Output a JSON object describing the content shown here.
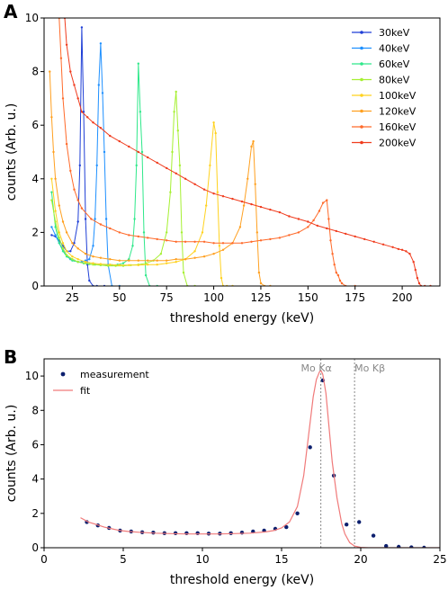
{
  "panels": [
    {
      "label": "A"
    },
    {
      "label": "B"
    }
  ],
  "chart_data": [
    {
      "type": "line",
      "panel": "A",
      "xlabel": "threshold energy (keV)",
      "ylabel": "counts (Arb. u.)",
      "xlim": [
        10,
        220
      ],
      "ylim": [
        0,
        10
      ],
      "xticks": [
        "25",
        "50",
        "75",
        "100",
        "125",
        "150",
        "175",
        "200"
      ],
      "yticks": [
        "0",
        "2",
        "4",
        "6",
        "8",
        "10"
      ],
      "legend_position": "top-right",
      "series": [
        {
          "name": "30keV",
          "color": "#1f3fd6",
          "x": [
            14,
            16,
            18,
            20,
            22,
            24,
            26,
            28,
            29,
            30,
            31,
            32,
            33,
            34,
            36,
            38,
            42
          ],
          "y": [
            1.9,
            1.85,
            1.7,
            1.5,
            1.3,
            1.3,
            1.6,
            2.4,
            4.5,
            9.65,
            6.5,
            2.5,
            0.8,
            0.2,
            0.0,
            0.0,
            0.0
          ]
        },
        {
          "name": "40keV",
          "color": "#1e90ff",
          "x": [
            14,
            16,
            18,
            20,
            22,
            24,
            26,
            28,
            30,
            32,
            34,
            36,
            37,
            38,
            39,
            40,
            41,
            42,
            43,
            44,
            46,
            50
          ],
          "y": [
            2.2,
            1.9,
            1.6,
            1.35,
            1.15,
            1.0,
            0.95,
            0.9,
            0.9,
            0.95,
            1.0,
            1.5,
            2.5,
            4.5,
            7.5,
            9.05,
            7.2,
            5.0,
            2.5,
            0.8,
            0.0,
            0.0
          ]
        },
        {
          "name": "60keV",
          "color": "#2ee88a",
          "x": [
            14,
            16,
            18,
            20,
            22,
            25,
            28,
            31,
            34,
            37,
            40,
            43,
            46,
            49,
            52,
            55,
            57,
            58,
            59,
            60,
            61,
            62,
            63,
            64,
            66,
            70
          ],
          "y": [
            3.5,
            2.2,
            1.6,
            1.3,
            1.1,
            0.95,
            0.9,
            0.85,
            0.82,
            0.8,
            0.78,
            0.78,
            0.78,
            0.8,
            0.85,
            1.0,
            1.5,
            2.5,
            4.5,
            8.3,
            6.5,
            5.0,
            2.0,
            0.4,
            0.0,
            0.0
          ]
        },
        {
          "name": "80keV",
          "color": "#a6f032",
          "x": [
            14,
            16,
            18,
            20,
            22,
            25,
            28,
            32,
            36,
            40,
            44,
            48,
            52,
            56,
            60,
            64,
            68,
            72,
            75,
            77,
            78,
            79,
            80,
            81,
            82,
            83,
            84,
            86,
            90
          ],
          "y": [
            3.2,
            2.4,
            1.8,
            1.4,
            1.15,
            1.0,
            0.9,
            0.85,
            0.8,
            0.78,
            0.75,
            0.75,
            0.75,
            0.78,
            0.8,
            0.85,
            0.95,
            1.2,
            2.0,
            3.5,
            5.0,
            6.5,
            7.25,
            5.8,
            4.5,
            2.0,
            0.5,
            0.0,
            0.0
          ]
        },
        {
          "name": "100keV",
          "color": "#ffd21f",
          "x": [
            14,
            16,
            18,
            20,
            22,
            25,
            28,
            32,
            36,
            40,
            45,
            50,
            55,
            60,
            65,
            70,
            75,
            80,
            85,
            90,
            94,
            96,
            98,
            100,
            101,
            102,
            103,
            104,
            105,
            107,
            110
          ],
          "y": [
            4.0,
            2.8,
            2.0,
            1.6,
            1.3,
            1.1,
            1.0,
            0.9,
            0.85,
            0.82,
            0.8,
            0.78,
            0.78,
            0.78,
            0.8,
            0.8,
            0.85,
            0.9,
            1.0,
            1.3,
            2.0,
            3.0,
            4.5,
            6.1,
            5.7,
            3.5,
            1.5,
            0.3,
            0.0,
            0.0,
            0.0
          ]
        },
        {
          "name": "120keV",
          "color": "#ffa020",
          "x": [
            13,
            14,
            15,
            16,
            18,
            20,
            22,
            25,
            28,
            32,
            36,
            40,
            45,
            50,
            55,
            60,
            65,
            70,
            75,
            80,
            85,
            90,
            95,
            100,
            105,
            110,
            114,
            116,
            118,
            120,
            121,
            122,
            123,
            124,
            125,
            127,
            130
          ],
          "y": [
            8.0,
            6.3,
            5.0,
            4.0,
            3.0,
            2.4,
            2.0,
            1.6,
            1.4,
            1.2,
            1.1,
            1.05,
            1.0,
            0.95,
            0.95,
            0.95,
            0.95,
            0.95,
            0.95,
            1.0,
            1.0,
            1.05,
            1.1,
            1.2,
            1.35,
            1.6,
            2.2,
            3.0,
            4.0,
            5.2,
            5.4,
            3.8,
            2.0,
            0.5,
            0.1,
            0.0,
            0.0
          ]
        },
        {
          "name": "160keV",
          "color": "#ff6a2a",
          "x": [
            18,
            19,
            20,
            22,
            24,
            26,
            28,
            30,
            35,
            40,
            45,
            50,
            55,
            60,
            65,
            70,
            75,
            80,
            85,
            90,
            95,
            100,
            105,
            110,
            115,
            120,
            125,
            130,
            135,
            140,
            145,
            150,
            153,
            156,
            158,
            160,
            161,
            162,
            163,
            164,
            165,
            166,
            167,
            168,
            170,
            175
          ],
          "y": [
            10.0,
            8.5,
            7.0,
            5.3,
            4.3,
            3.6,
            3.2,
            2.9,
            2.5,
            2.3,
            2.15,
            2.0,
            1.9,
            1.85,
            1.8,
            1.75,
            1.7,
            1.65,
            1.65,
            1.65,
            1.65,
            1.6,
            1.6,
            1.6,
            1.6,
            1.65,
            1.7,
            1.75,
            1.8,
            1.9,
            2.0,
            2.2,
            2.45,
            2.8,
            3.1,
            3.2,
            2.5,
            1.7,
            1.2,
            0.8,
            0.5,
            0.4,
            0.2,
            0.1,
            0.0,
            0.0
          ]
        },
        {
          "name": "200keV",
          "color": "#f03c1e",
          "x": [
            21,
            22,
            24,
            26,
            28,
            30,
            33,
            36,
            40,
            45,
            50,
            55,
            60,
            65,
            70,
            75,
            80,
            85,
            90,
            95,
            100,
            105,
            110,
            115,
            120,
            125,
            130,
            135,
            140,
            145,
            150,
            155,
            160,
            165,
            170,
            175,
            180,
            185,
            190,
            195,
            198,
            200,
            202,
            204,
            206,
            207,
            208,
            209,
            210,
            212,
            215
          ],
          "y": [
            10.0,
            9.0,
            8.0,
            7.5,
            7.0,
            6.5,
            6.3,
            6.1,
            5.9,
            5.6,
            5.4,
            5.2,
            5.0,
            4.8,
            4.6,
            4.4,
            4.2,
            4.0,
            3.8,
            3.6,
            3.45,
            3.35,
            3.25,
            3.15,
            3.05,
            2.95,
            2.85,
            2.75,
            2.6,
            2.5,
            2.4,
            2.25,
            2.15,
            2.05,
            1.95,
            1.85,
            1.75,
            1.65,
            1.55,
            1.45,
            1.38,
            1.35,
            1.3,
            1.2,
            0.9,
            0.6,
            0.3,
            0.1,
            0.0,
            0.0,
            0.0
          ]
        }
      ]
    },
    {
      "type": "scatter",
      "panel": "B",
      "xlabel": "threshold energy (keV)",
      "ylabel": "counts (Arb. u.)",
      "xlim": [
        0,
        25
      ],
      "ylim": [
        0,
        11
      ],
      "xticks": [
        "0",
        "5",
        "10",
        "15",
        "20",
        "25"
      ],
      "yticks": [
        "0",
        "2",
        "4",
        "6",
        "8",
        "10"
      ],
      "legend_position": "top-left",
      "annotations": [
        {
          "text": "Mo Kα",
          "x": 17.48
        },
        {
          "text": "Mo Kβ",
          "x": 19.61
        }
      ],
      "series": [
        {
          "name": "measurement",
          "kind": "points",
          "color": "#0c1f6e",
          "x": [
            2.7,
            3.4,
            4.1,
            4.8,
            5.5,
            6.2,
            6.9,
            7.6,
            8.3,
            9.0,
            9.7,
            10.4,
            11.1,
            11.8,
            12.5,
            13.2,
            13.9,
            14.6,
            15.3,
            16.0,
            16.8,
            17.6,
            18.3,
            19.1,
            19.9,
            20.8,
            21.6,
            22.4,
            23.2,
            24.0
          ],
          "y": [
            1.5,
            1.3,
            1.15,
            1.0,
            0.95,
            0.9,
            0.88,
            0.85,
            0.85,
            0.85,
            0.85,
            0.82,
            0.82,
            0.85,
            0.88,
            0.95,
            1.0,
            1.1,
            1.2,
            2.0,
            5.85,
            9.75,
            4.2,
            1.35,
            1.5,
            0.7,
            0.1,
            0.05,
            0.02,
            0.0
          ]
        },
        {
          "name": "fit",
          "kind": "line",
          "color": "#f07a7a",
          "x": [
            2.3,
            2.8,
            3.3,
            3.8,
            4.3,
            4.8,
            5.3,
            6.0,
            7.0,
            8.0,
            9.0,
            10.0,
            11.0,
            12.0,
            13.0,
            14.0,
            14.5,
            15.0,
            15.5,
            16.0,
            16.4,
            16.7,
            17.0,
            17.2,
            17.4,
            17.5,
            17.6,
            17.8,
            18.0,
            18.2,
            18.5,
            18.8,
            19.0,
            19.3,
            19.6,
            20.0,
            20.5,
            21.0,
            22.0,
            23.0,
            24.0,
            25.0
          ],
          "y": [
            1.75,
            1.5,
            1.35,
            1.2,
            1.1,
            1.0,
            0.95,
            0.9,
            0.85,
            0.82,
            0.8,
            0.8,
            0.8,
            0.82,
            0.85,
            0.92,
            1.0,
            1.15,
            1.5,
            2.4,
            4.2,
            6.5,
            8.8,
            9.8,
            10.25,
            10.3,
            10.1,
            9.0,
            7.0,
            5.0,
            2.9,
            1.4,
            0.8,
            0.3,
            0.1,
            0.02,
            0.0,
            0.0,
            0.0,
            0.0,
            0.0,
            0.0
          ]
        }
      ]
    }
  ]
}
